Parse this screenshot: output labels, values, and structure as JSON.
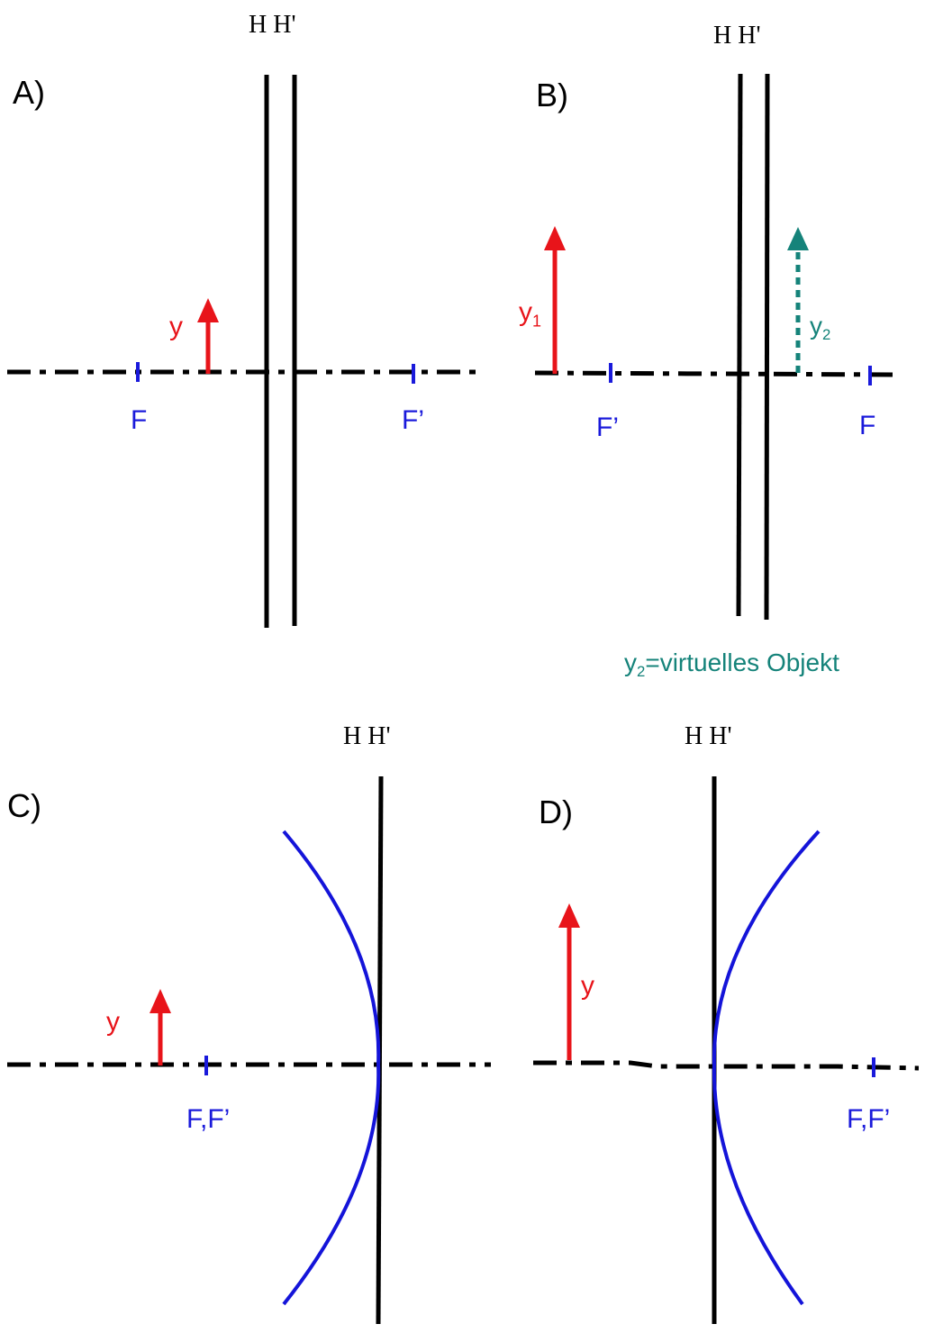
{
  "colors": {
    "axis": "#000000",
    "planes": "#000000",
    "focus": "#1a1adb",
    "object": "#e8141a",
    "virtual": "#15837a",
    "mirror": "#1414d9"
  },
  "panels": {
    "a": {
      "label": "A)",
      "planes": "H H'",
      "object_label": "y",
      "focus_left": "F",
      "focus_right": "F’"
    },
    "b": {
      "label": "B)",
      "planes": "H H'",
      "object1_base": "y",
      "object1_sub": "1",
      "object2_base": "y",
      "object2_sub": "2",
      "focus_left": "F’",
      "focus_right": "F",
      "note_base": "y",
      "note_sub": "2",
      "note_text": "=virtuelles Objekt"
    },
    "c": {
      "label": "C)",
      "planes": "H H'",
      "object_label": "y",
      "focus": "F,F’"
    },
    "d": {
      "label": "D)",
      "planes": "H H'",
      "object_label": "y",
      "focus": "F,F’"
    }
  }
}
